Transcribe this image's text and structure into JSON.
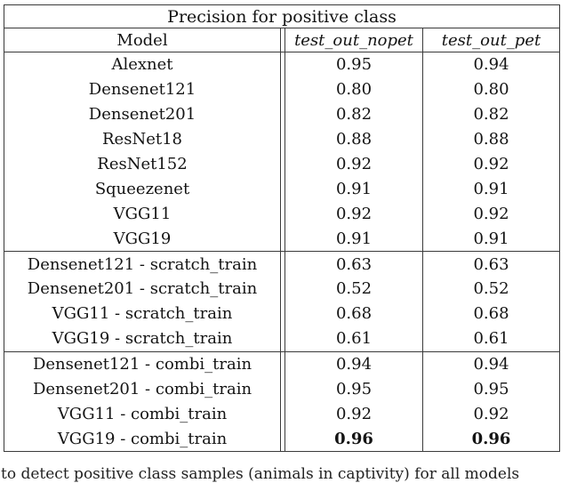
{
  "table": {
    "title": "Precision for positive class",
    "columns": [
      "Model",
      "test_out_nopet",
      "test_out_pet"
    ],
    "rows": [
      {
        "model": "Alexnet",
        "nopet": "0.95",
        "pet": "0.94",
        "section_start": false,
        "bold_values": false
      },
      {
        "model": "Densenet121",
        "nopet": "0.80",
        "pet": "0.80",
        "section_start": false,
        "bold_values": false
      },
      {
        "model": "Densenet201",
        "nopet": "0.82",
        "pet": "0.82",
        "section_start": false,
        "bold_values": false
      },
      {
        "model": "ResNet18",
        "nopet": "0.88",
        "pet": "0.88",
        "section_start": false,
        "bold_values": false
      },
      {
        "model": "ResNet152",
        "nopet": "0.92",
        "pet": "0.92",
        "section_start": false,
        "bold_values": false
      },
      {
        "model": "Squeezenet",
        "nopet": "0.91",
        "pet": "0.91",
        "section_start": false,
        "bold_values": false
      },
      {
        "model": "VGG11",
        "nopet": "0.92",
        "pet": "0.92",
        "section_start": false,
        "bold_values": false
      },
      {
        "model": "VGG19",
        "nopet": "0.91",
        "pet": "0.91",
        "section_start": false,
        "bold_values": false
      },
      {
        "model": "Densenet121 - scratch_train",
        "nopet": "0.63",
        "pet": "0.63",
        "section_start": true,
        "bold_values": false
      },
      {
        "model": "Densenet201 - scratch_train",
        "nopet": "0.52",
        "pet": "0.52",
        "section_start": false,
        "bold_values": false
      },
      {
        "model": "VGG11 - scratch_train",
        "nopet": "0.68",
        "pet": "0.68",
        "section_start": false,
        "bold_values": false
      },
      {
        "model": "VGG19 - scratch_train",
        "nopet": "0.61",
        "pet": "0.61",
        "section_start": false,
        "bold_values": false
      },
      {
        "model": "Densenet121 - combi_train",
        "nopet": "0.94",
        "pet": "0.94",
        "section_start": true,
        "bold_values": false
      },
      {
        "model": "Densenet201 - combi_train",
        "nopet": "0.95",
        "pet": "0.95",
        "section_start": false,
        "bold_values": false
      },
      {
        "model": "VGG11 - combi_train",
        "nopet": "0.92",
        "pet": "0.92",
        "section_start": false,
        "bold_values": false
      },
      {
        "model": "VGG19 - combi_train",
        "nopet": "0.96",
        "pet": "0.96",
        "section_start": false,
        "bold_values": true
      }
    ]
  },
  "caption": "to detect positive class samples (animals in captivity) for all models"
}
